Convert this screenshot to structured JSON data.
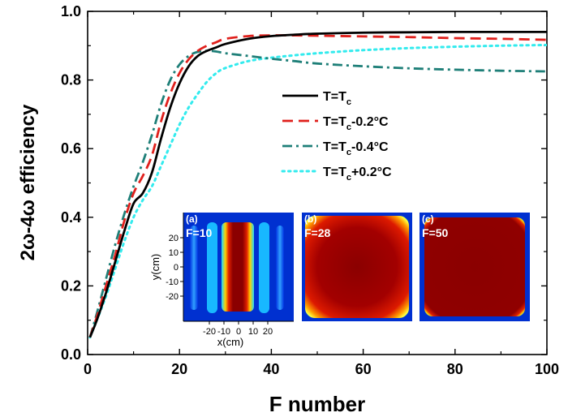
{
  "chart_data": {
    "type": "line",
    "xlabel": "F number",
    "ylabel": "2ω-4ω efficiency",
    "xlim": [
      0,
      100
    ],
    "ylim": [
      0.0,
      1.0
    ],
    "x_ticks": [
      "0",
      "20",
      "40",
      "60",
      "80",
      "100"
    ],
    "y_ticks": [
      "0.0",
      "0.2",
      "0.4",
      "0.6",
      "0.8",
      "1.0"
    ],
    "legend_position": "right-middle",
    "series": [
      {
        "name": "T=Tc",
        "name_parts": [
          "T=T",
          "c",
          ""
        ],
        "color": "#000000",
        "style": "solid",
        "x": [
          0.5,
          2,
          4,
          6,
          8,
          10,
          12,
          14,
          16,
          18,
          20,
          22,
          24,
          26,
          28,
          30,
          35,
          40,
          45,
          50,
          60,
          70,
          80,
          90,
          100
        ],
        "y": [
          0.05,
          0.1,
          0.18,
          0.27,
          0.36,
          0.44,
          0.47,
          0.53,
          0.63,
          0.72,
          0.79,
          0.84,
          0.87,
          0.885,
          0.895,
          0.905,
          0.92,
          0.928,
          0.932,
          0.935,
          0.938,
          0.939,
          0.94,
          0.94,
          0.94
        ]
      },
      {
        "name": "T=Tc-0.2°C",
        "name_parts": [
          "T=T",
          "c",
          "-0.2°C"
        ],
        "color": "#e0201c",
        "style": "dash",
        "x": [
          0.5,
          2,
          4,
          6,
          8,
          10,
          12,
          14,
          16,
          18,
          20,
          22,
          24,
          26,
          28,
          30,
          35,
          40,
          45,
          50,
          60,
          70,
          80,
          90,
          100
        ],
        "y": [
          0.05,
          0.11,
          0.2,
          0.29,
          0.39,
          0.47,
          0.52,
          0.58,
          0.68,
          0.76,
          0.82,
          0.86,
          0.885,
          0.9,
          0.91,
          0.92,
          0.928,
          0.93,
          0.93,
          0.929,
          0.927,
          0.925,
          0.922,
          0.92,
          0.917
        ]
      },
      {
        "name": "T=Tc-0.4°C",
        "name_parts": [
          "T=T",
          "c",
          "-0.4°C"
        ],
        "color": "#1e7f78",
        "style": "dashdot",
        "x": [
          0.5,
          2,
          4,
          6,
          8,
          10,
          12,
          14,
          16,
          18,
          20,
          22,
          24,
          26,
          28,
          30,
          35,
          40,
          45,
          50,
          60,
          70,
          80,
          90,
          100
        ],
        "y": [
          0.05,
          0.12,
          0.22,
          0.32,
          0.41,
          0.49,
          0.56,
          0.64,
          0.73,
          0.8,
          0.845,
          0.87,
          0.882,
          0.885,
          0.883,
          0.878,
          0.87,
          0.862,
          0.855,
          0.848,
          0.84,
          0.834,
          0.83,
          0.827,
          0.825
        ]
      },
      {
        "name": "T=Tc+0.2°C",
        "name_parts": [
          "T=T",
          "c",
          "+0.2°C"
        ],
        "color": "#33ebee",
        "style": "dot",
        "x": [
          0.5,
          2,
          4,
          6,
          8,
          10,
          12,
          14,
          16,
          18,
          20,
          22,
          24,
          26,
          28,
          30,
          35,
          40,
          45,
          50,
          60,
          70,
          80,
          90,
          100
        ],
        "y": [
          0.05,
          0.1,
          0.17,
          0.25,
          0.33,
          0.4,
          0.45,
          0.49,
          0.55,
          0.61,
          0.67,
          0.72,
          0.76,
          0.795,
          0.82,
          0.835,
          0.855,
          0.865,
          0.872,
          0.878,
          0.887,
          0.893,
          0.897,
          0.9,
          0.902
        ]
      }
    ],
    "insets": [
      {
        "tag": "(a)",
        "label": "F=10",
        "variant": "bars",
        "xlabel": "x(cm)",
        "ylabel": "y(cm)",
        "x_ticks": [
          "-20",
          "-10",
          "0",
          "10",
          "20"
        ],
        "y_ticks": [
          "20",
          "10",
          "0",
          "-10",
          "-20"
        ]
      },
      {
        "tag": "(b)",
        "label": "F=28",
        "variant": "soft"
      },
      {
        "tag": "(c)",
        "label": "F=50",
        "variant": "sharp"
      }
    ]
  }
}
